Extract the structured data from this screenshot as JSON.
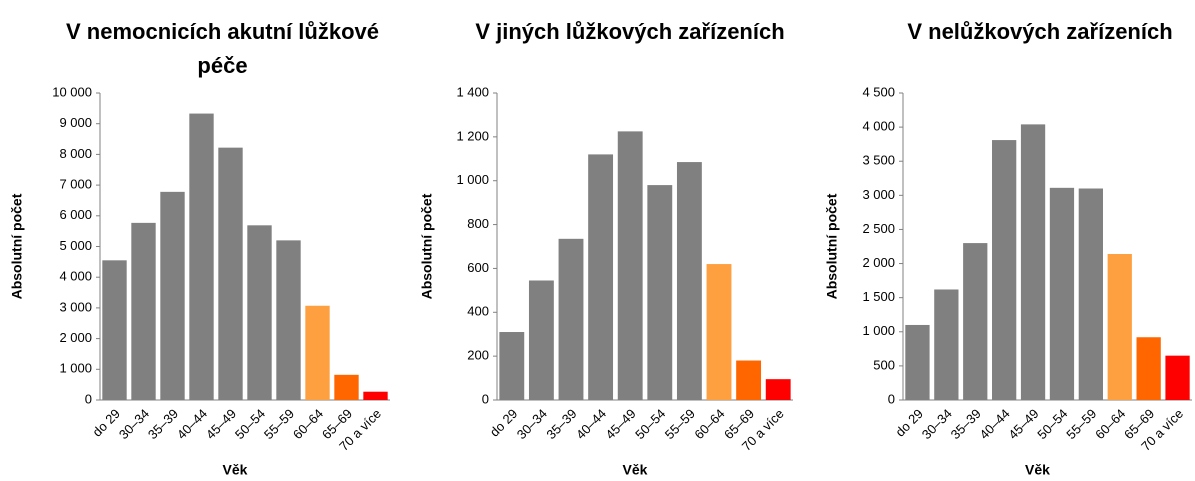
{
  "chart_data": [
    {
      "type": "bar",
      "title": "V nemocnicích akutní lůžkové péče",
      "x_label": "Věk",
      "y_label": "Absolutní počet",
      "categories": [
        "do 29",
        "30–34",
        "35–39",
        "40–44",
        "45–49",
        "50–54",
        "55–59",
        "60–64",
        "65–69",
        "70 a více"
      ],
      "values": [
        4550,
        5770,
        6780,
        9330,
        8220,
        5690,
        5200,
        3070,
        820,
        270
      ],
      "colors": [
        "#808080",
        "#808080",
        "#808080",
        "#808080",
        "#808080",
        "#808080",
        "#808080",
        "#ffa040",
        "#ff6600",
        "#ff0000"
      ],
      "ylim": [
        0,
        10000
      ],
      "yticks": [
        0,
        {
          "value": 1000,
          "label": "1 000"
        },
        {
          "value": 2000,
          "label": "2 000"
        },
        {
          "value": 3000,
          "label": "3 000"
        },
        {
          "value": 4000,
          "label": "4 000"
        },
        {
          "value": 5000,
          "label": "5 000"
        },
        {
          "value": 6000,
          "label": "6 000"
        },
        {
          "value": 7000,
          "label": "7 000"
        },
        {
          "value": 8000,
          "label": "8 000"
        },
        {
          "value": 9000,
          "label": "9 000"
        },
        {
          "value": 10000,
          "label": "10 000"
        }
      ],
      "grid": false
    },
    {
      "type": "bar",
      "title": "V jiných lůžkových zařízeních",
      "x_label": "Věk",
      "y_label": "Absolutní počet",
      "categories": [
        "do 29",
        "30–34",
        "35–39",
        "40–44",
        "45–49",
        "50–54",
        "55–59",
        "60–64",
        "65–69",
        "70 a více"
      ],
      "values": [
        310,
        545,
        735,
        1120,
        1225,
        980,
        1085,
        620,
        180,
        95
      ],
      "colors": [
        "#808080",
        "#808080",
        "#808080",
        "#808080",
        "#808080",
        "#808080",
        "#808080",
        "#ffa040",
        "#ff6600",
        "#ff0000"
      ],
      "ylim": [
        0,
        1400
      ],
      "yticks": [
        0,
        200,
        400,
        600,
        800,
        {
          "value": 1000,
          "label": "1 000"
        },
        {
          "value": 1200,
          "label": "1 200"
        },
        {
          "value": 1400,
          "label": "1 400"
        }
      ],
      "grid": false
    },
    {
      "type": "bar",
      "title": "V nelůžkových zařízeních",
      "x_label": "Věk",
      "y_label": "Absolutní počet",
      "categories": [
        "do 29",
        "30–34",
        "35–39",
        "40–44",
        "45–49",
        "50–54",
        "55–59",
        "60–64",
        "65–69",
        "70 a více"
      ],
      "values": [
        1100,
        1620,
        2300,
        3810,
        4040,
        3110,
        3100,
        2140,
        920,
        650
      ],
      "colors": [
        "#808080",
        "#808080",
        "#808080",
        "#808080",
        "#808080",
        "#808080",
        "#808080",
        "#ffa040",
        "#ff6600",
        "#ff0000"
      ],
      "ylim": [
        0,
        4500
      ],
      "yticks": [
        0,
        500,
        {
          "value": 1000,
          "label": "1 000"
        },
        {
          "value": 1500,
          "label": "1 500"
        },
        {
          "value": 2000,
          "label": "2 000"
        },
        {
          "value": 2500,
          "label": "2 500"
        },
        {
          "value": 3000,
          "label": "3 000"
        },
        {
          "value": 3500,
          "label": "3 500"
        },
        {
          "value": 4000,
          "label": "4 000"
        },
        {
          "value": 4500,
          "label": "4 500"
        }
      ],
      "grid": false
    }
  ]
}
